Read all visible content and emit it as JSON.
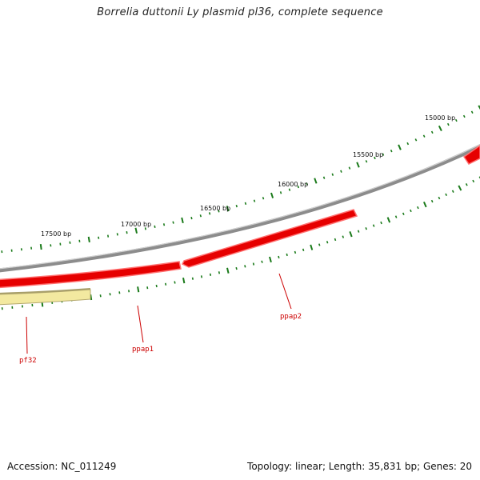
{
  "title": "Borrelia duttonii Ly plasmid pl36, complete sequence",
  "footer": {
    "accession": "Accession: NC_011249",
    "stats": "Topology: linear; Length: 35,831 bp; Genes: 20"
  },
  "ruler": {
    "labels": [
      "15000 bp",
      "15500 bp",
      "16000 bp",
      "16500 bp",
      "17000 bp",
      "17500 bp"
    ]
  },
  "genes": [
    {
      "name": "ppap2",
      "strand": "forward"
    },
    {
      "name": "ppap1",
      "strand": "forward"
    },
    {
      "name": "pf32",
      "strand": "forward"
    }
  ],
  "colors": {
    "backbone": "#8c8c8c",
    "gene": "#e60000",
    "gene_light": "#ff6e6e",
    "pseudogene": "#f3e9a0",
    "ticks": "#1a7a1a",
    "labels": "#cc0000"
  }
}
